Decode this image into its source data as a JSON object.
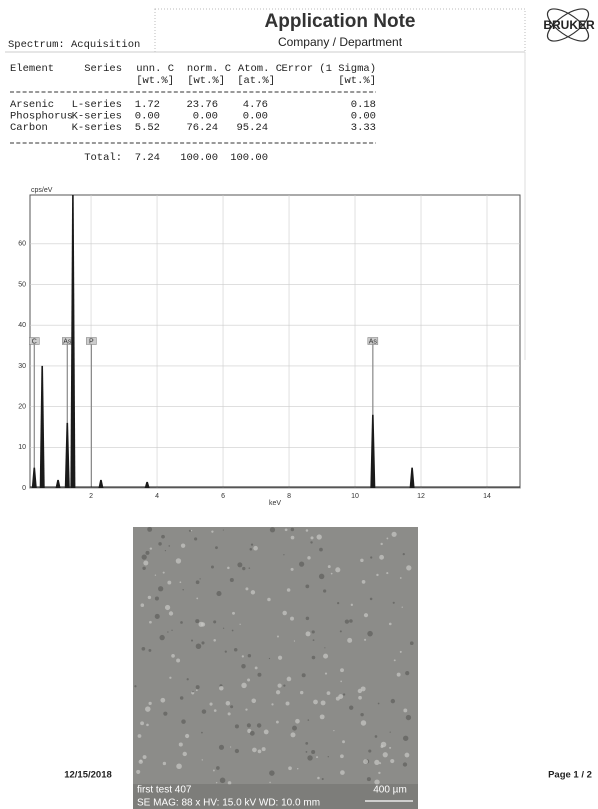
{
  "header": {
    "title": "Application Note",
    "subtitle": "Company / Department",
    "section": "Spectrum: Acquisition",
    "logo": "BRUKER"
  },
  "table": {
    "header1": [
      "Element",
      "Series",
      "unn. C",
      "norm. C",
      "Atom. C",
      "Error (1 Sigma)"
    ],
    "header2": [
      "[wt.%]",
      "[wt.%]",
      "[at.%]",
      "[wt.%]"
    ],
    "rows": [
      [
        "Arsenic",
        "L-series",
        "1.72",
        "23.76",
        "4.76",
        "0.18"
      ],
      [
        "Phosphorus",
        "K-series",
        "0.00",
        "0.00",
        "0.00",
        "0.00"
      ],
      [
        "Carbon",
        "K-series",
        "5.52",
        "76.24",
        "95.24",
        "3.33"
      ]
    ],
    "total": [
      "Total:",
      "7.24",
      "100.00",
      "100.00"
    ]
  },
  "spectrum": {
    "type": "spectrum",
    "ylabel": "cps/eV",
    "xlabel": "keV",
    "xlim": [
      0.15,
      15
    ],
    "ylim": [
      0,
      72
    ],
    "xticks": [
      2,
      4,
      6,
      8,
      10,
      12,
      14
    ],
    "yticks": [
      0,
      10,
      20,
      30,
      40,
      50,
      60
    ],
    "grid": true,
    "peaks": {
      "color": "#1a1a1a",
      "x": [
        0.28,
        0.52,
        1.0,
        1.28,
        1.45,
        2.3,
        3.7,
        10.54,
        11.73
      ],
      "values": [
        5,
        30,
        2,
        16,
        72,
        2,
        1.5,
        18,
        5
      ]
    },
    "markers": {
      "labels": [
        "C",
        "As",
        "P",
        "As"
      ],
      "x": [
        0.28,
        1.28,
        2.01,
        10.54
      ],
      "height": 36
    }
  },
  "image": {
    "caption": "first test 407",
    "scale": "400 µm",
    "info": "SE  MAG: 88 x  HV: 15.0 kV  WD: 10.0 mm"
  },
  "footer": {
    "date": "12/15/2018",
    "page": "Page 1 / 2"
  }
}
